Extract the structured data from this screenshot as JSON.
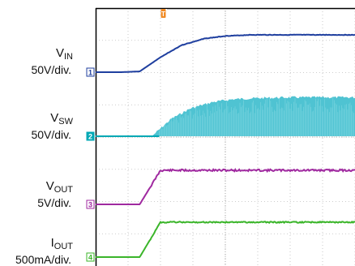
{
  "chart_data": {
    "type": "line",
    "grid": true,
    "trigger_marker": "T",
    "series": [
      {
        "base": "V",
        "sub": "IN",
        "scale": "50V/div.",
        "marker": "1",
        "color": "#1f3f9f"
      },
      {
        "base": "V",
        "sub": "SW",
        "scale": "50V/div.",
        "marker": "2",
        "color": "#00a8b5",
        "fill": "#4fc3d2"
      },
      {
        "base": "V",
        "sub": "OUT",
        "scale": "5V/div.",
        "marker": "3",
        "color": "#a02aa0"
      },
      {
        "base": "I",
        "sub": "OUT",
        "scale": "500mA/div.",
        "marker": "4",
        "color": "#3bb52a"
      }
    ],
    "x": [
      0,
      0.1,
      0.17,
      0.25,
      0.33,
      0.42,
      0.5,
      0.6,
      0.75,
      1.0
    ],
    "traces": {
      "vin": [
        0,
        0,
        0.02,
        0.4,
        0.72,
        0.9,
        0.97,
        1.0,
        1.0,
        1.0
      ],
      "vsw": [
        0,
        0,
        0.0,
        0.45,
        0.72,
        0.88,
        0.95,
        0.98,
        1.0,
        1.0
      ],
      "vout": [
        0,
        0,
        0.0,
        1.0,
        1.0,
        1.0,
        1.0,
        1.0,
        1.0,
        1.0
      ],
      "iout": [
        0,
        0,
        0.0,
        1.0,
        1.0,
        1.0,
        1.0,
        1.0,
        1.0,
        1.0
      ]
    }
  }
}
